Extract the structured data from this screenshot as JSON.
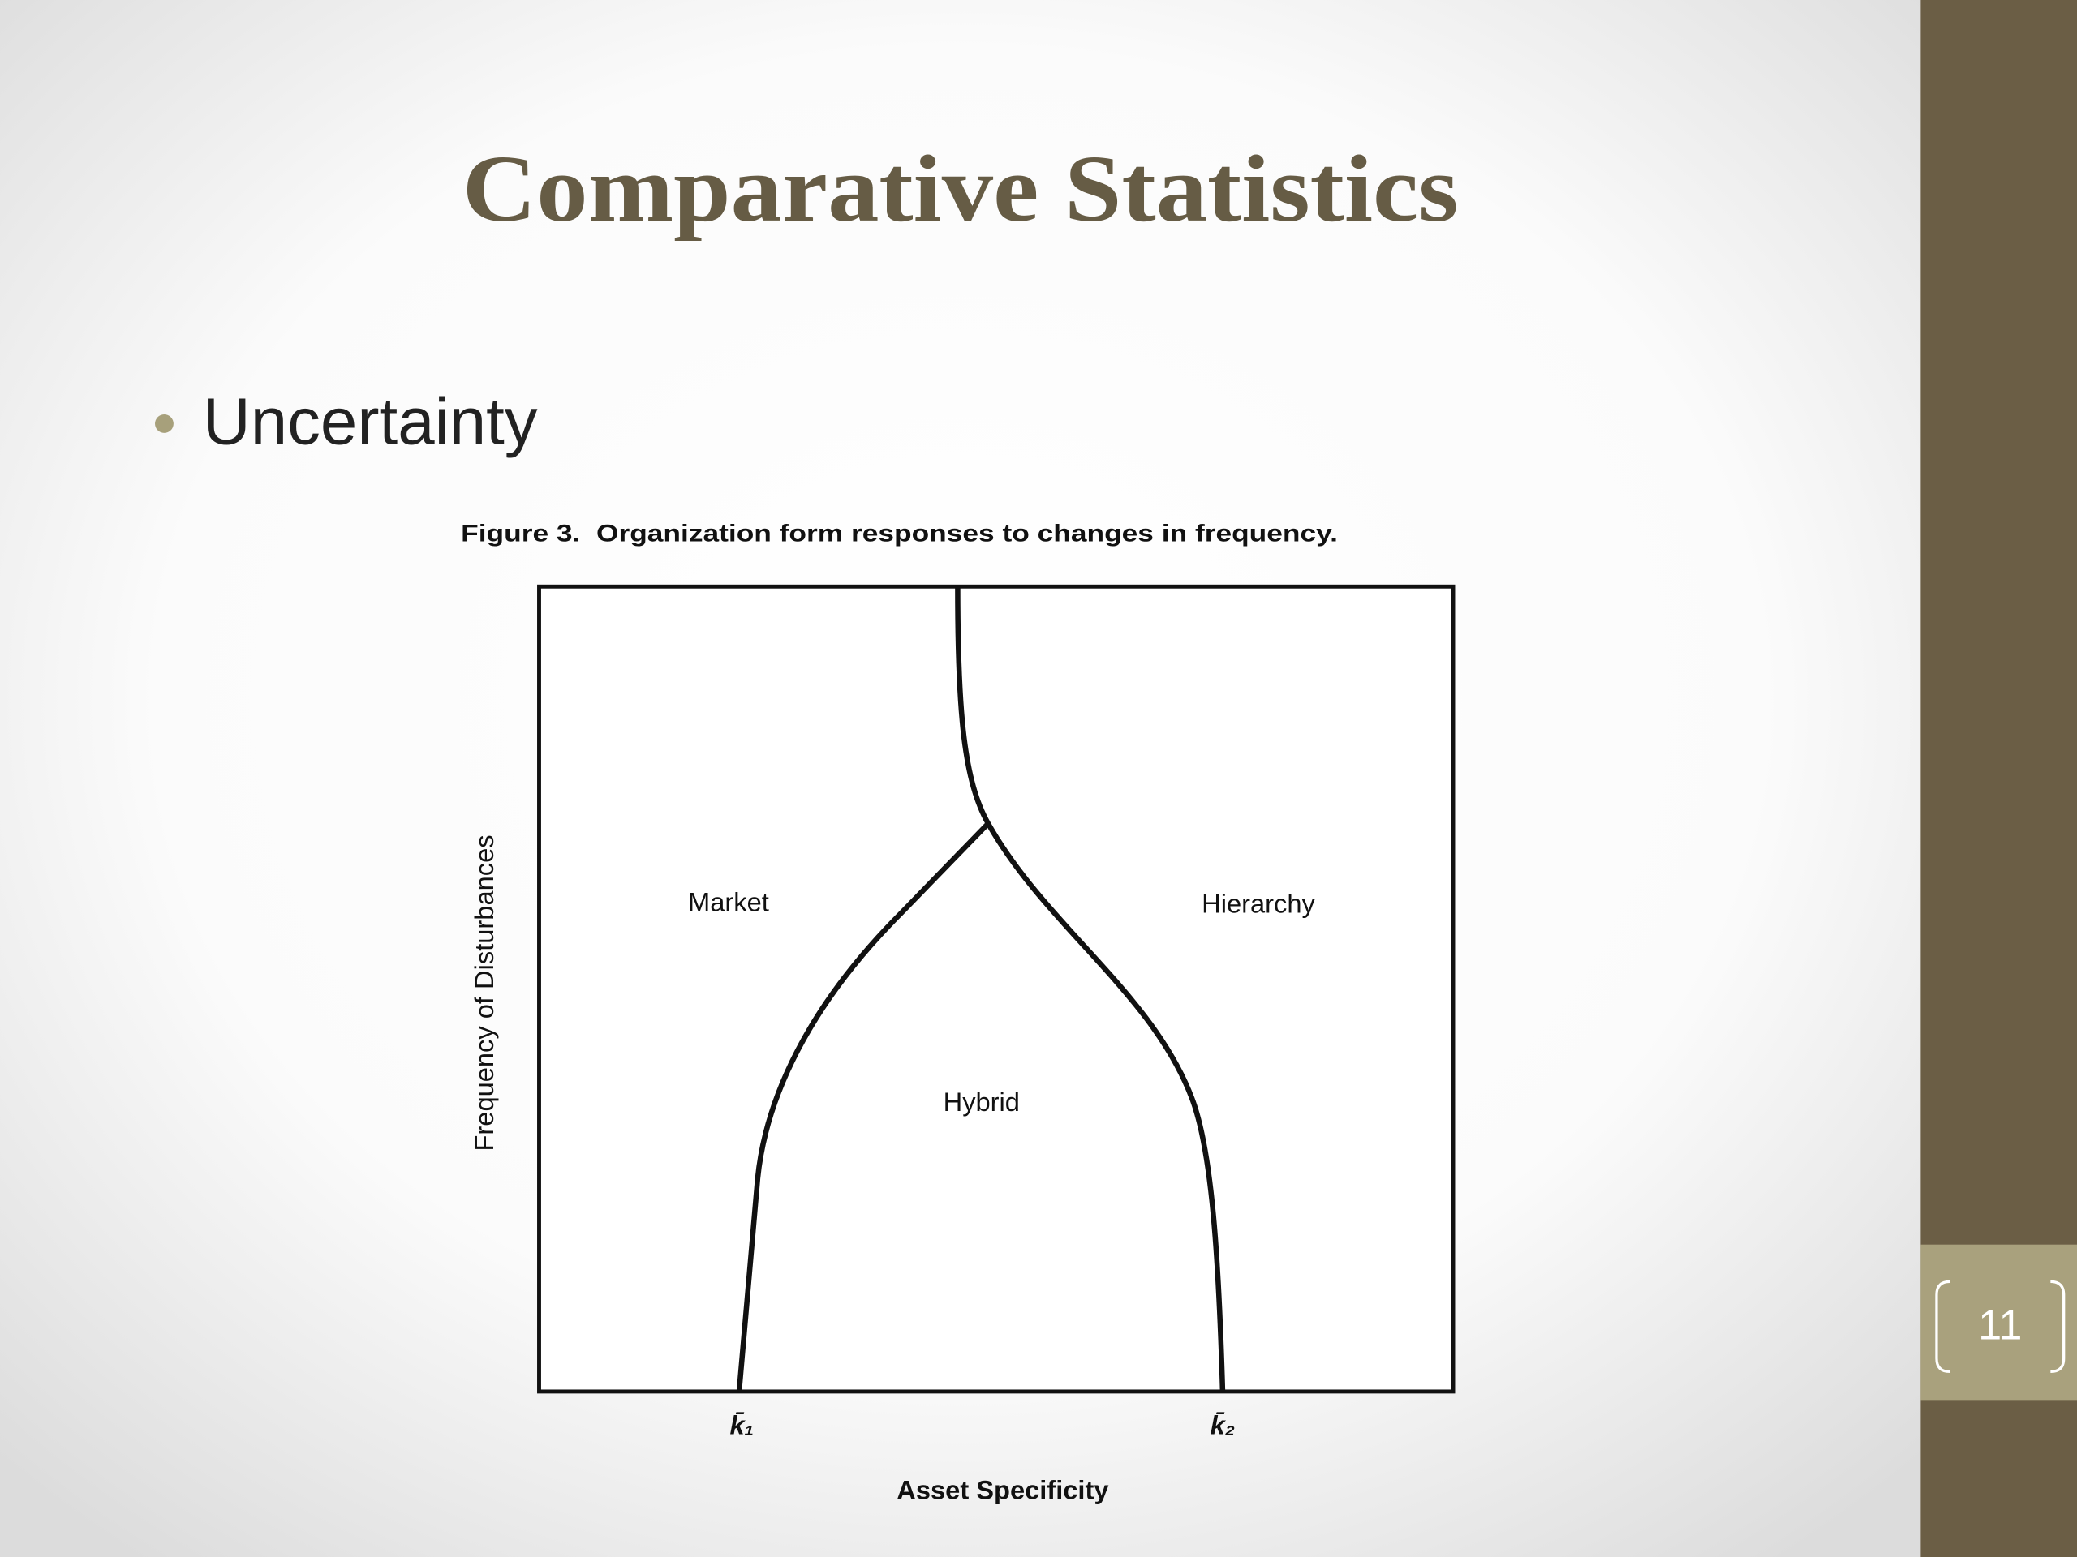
{
  "slide": {
    "title": "Comparative Statistics",
    "bullet": "Uncertainty",
    "page_number": "11",
    "figure": {
      "caption": "Figure 3.  Organization form responses to changes in frequency.",
      "y_axis_label": "Frequency of Disturbances",
      "x_axis_label": "Asset Specificity",
      "regions": [
        "Market",
        "Hybrid",
        "Hierarchy"
      ],
      "x_markers": [
        "k̄₁",
        "k̄₂"
      ]
    }
  }
}
